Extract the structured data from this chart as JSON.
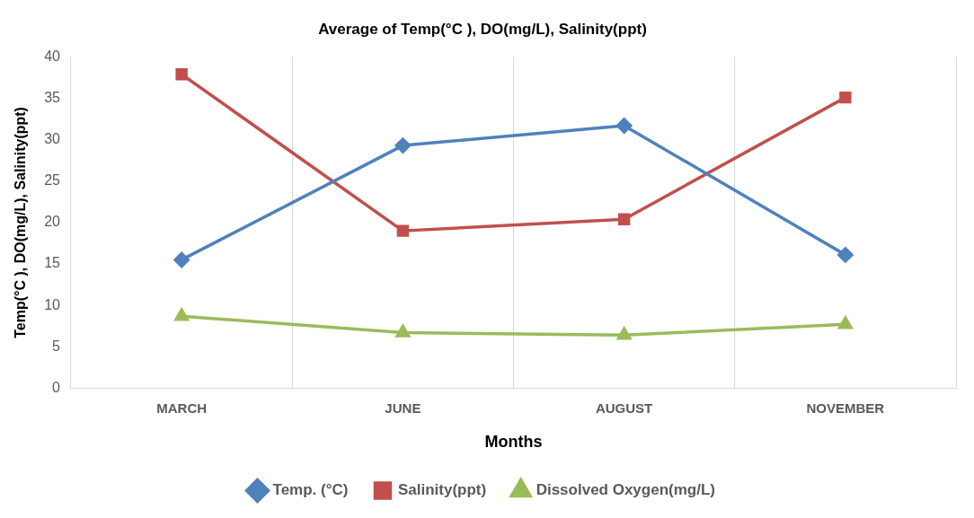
{
  "chart_data": {
    "type": "line",
    "title": "Average of Temp(°C ), DO(mg/L), Salinity(ppt)",
    "xlabel": "Months",
    "ylabel": "Temp(°C ), DO(mg/L), Salinity(ppt)",
    "categories": [
      "MARCH",
      "JUNE",
      "AUGUST",
      "NOVEMBER"
    ],
    "series": [
      {
        "name": "Temp. (°C)",
        "color": "#4f81bd",
        "marker": "diamond",
        "values": [
          15.5,
          29.3,
          31.7,
          16.1
        ]
      },
      {
        "name": "Salinity(ppt)",
        "color": "#c0504d",
        "marker": "square",
        "values": [
          37.9,
          19.0,
          20.4,
          35.1
        ]
      },
      {
        "name": "Dissolved Oxygen(mg/L)",
        "color": "#9bbb59",
        "marker": "triangle",
        "values": [
          8.7,
          6.7,
          6.4,
          7.7
        ]
      }
    ],
    "ylim": [
      0,
      40
    ],
    "yticks": [
      0,
      5,
      10,
      15,
      20,
      25,
      30,
      35,
      40
    ],
    "grid": "x",
    "legend": "bottom"
  }
}
